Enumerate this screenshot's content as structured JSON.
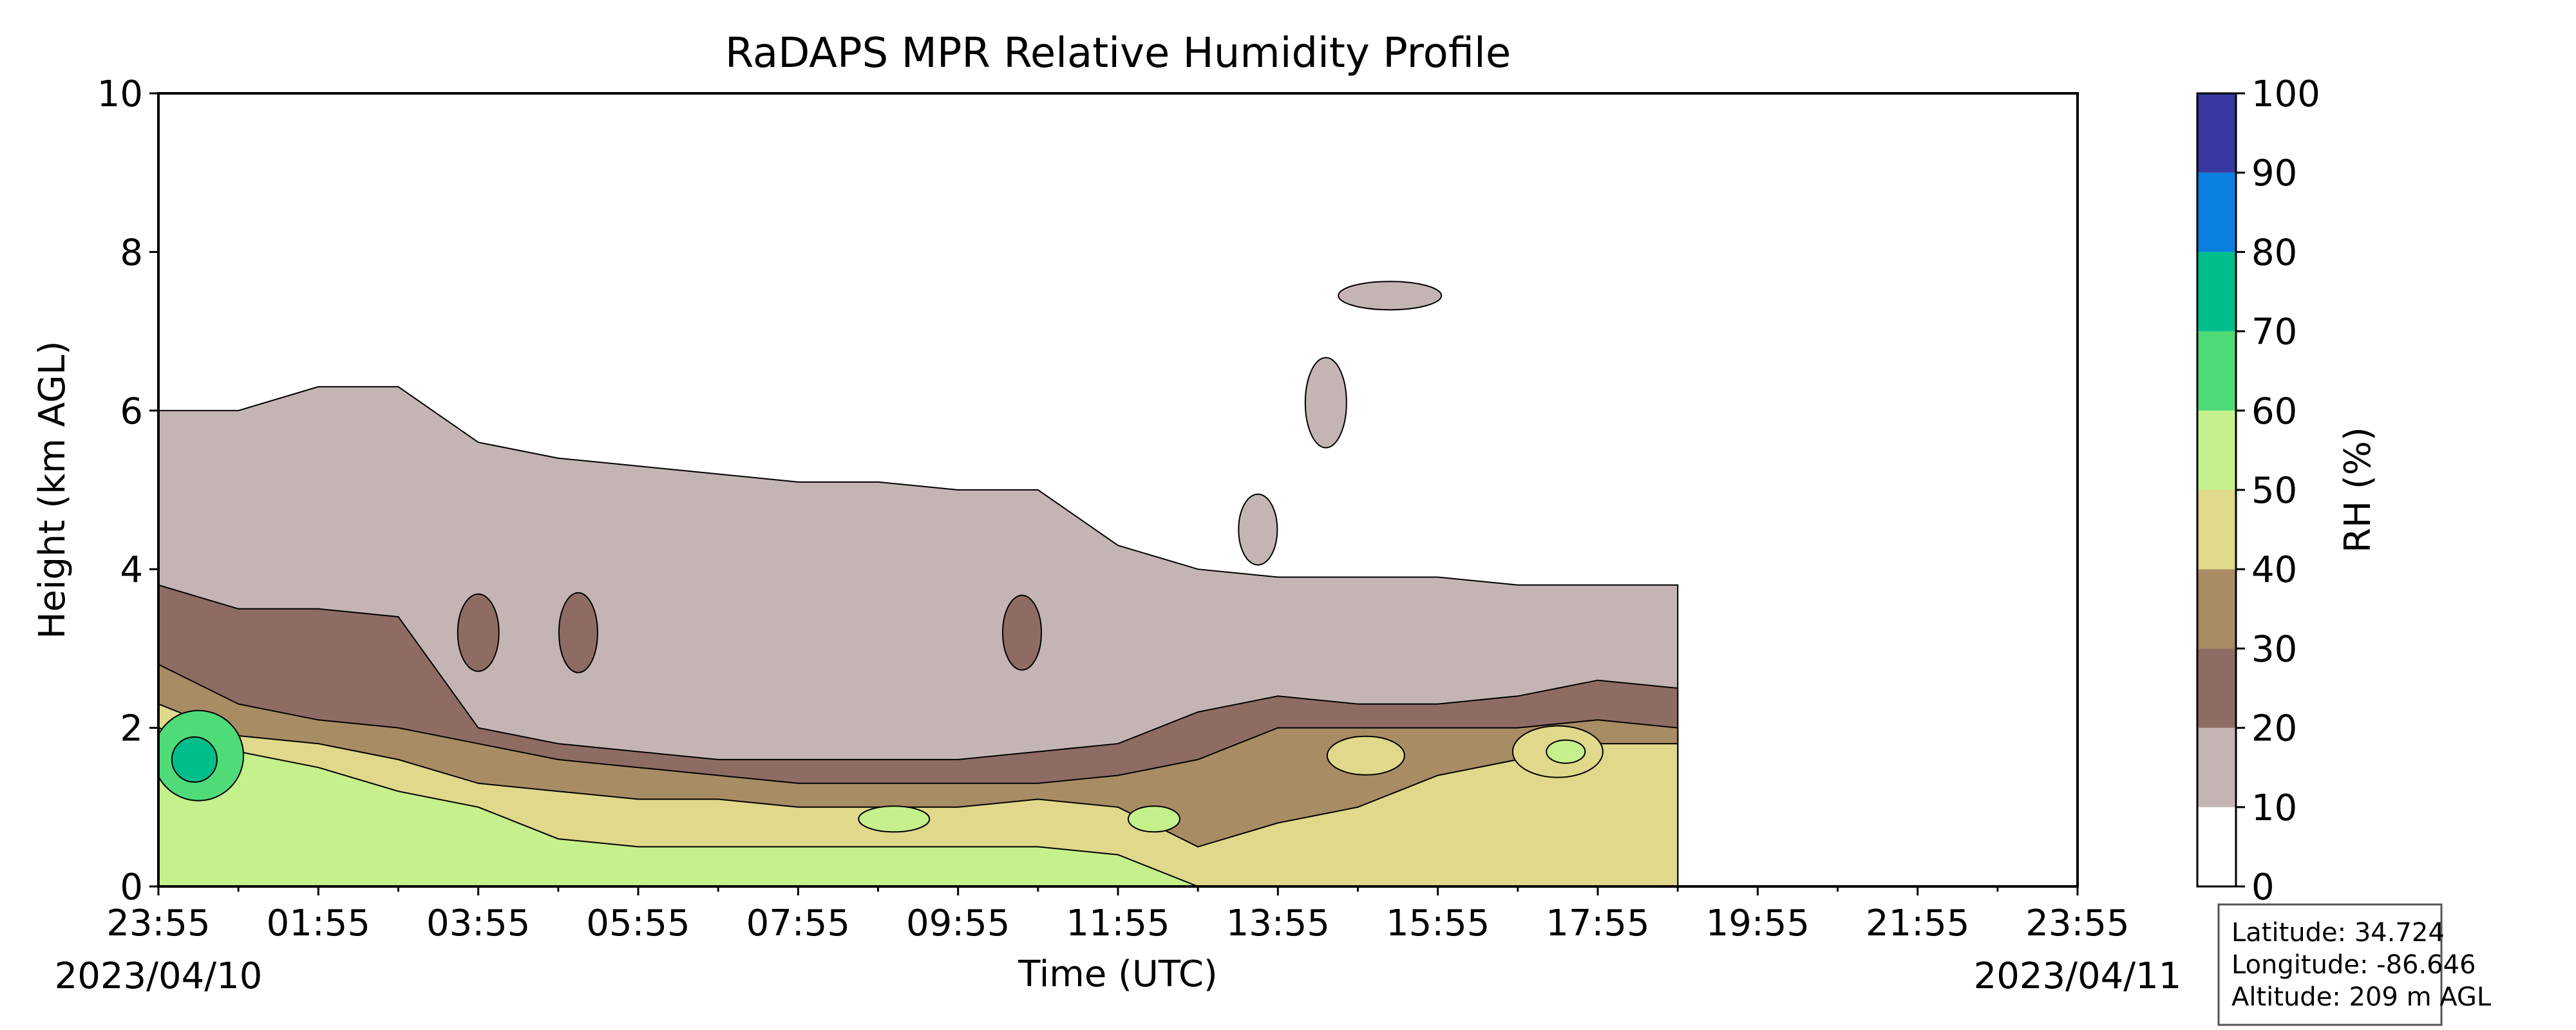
{
  "chart_data": {
    "type": "heatmap",
    "subtype": "filled-contour",
    "title": "RaDAPS MPR Relative Humidity Profile",
    "xlabel": "Time (UTC)",
    "ylabel": "Height (km AGL)",
    "ylim": [
      0,
      10
    ],
    "y_ticks": [
      "0",
      "2",
      "4",
      "6",
      "8",
      "10"
    ],
    "x_ticks": [
      "23:55",
      "01:55",
      "03:55",
      "05:55",
      "07:55",
      "09:55",
      "11:55",
      "13:55",
      "15:55",
      "17:55",
      "19:55",
      "21:55",
      "23:55"
    ],
    "start_date": "2023/04/10",
    "end_date": "2023/04/11",
    "data_end_time": "18:55",
    "colorbar": {
      "label": "RH (%)",
      "ticks": [
        "0",
        "10",
        "20",
        "30",
        "40",
        "50",
        "60",
        "70",
        "80",
        "90",
        "100"
      ],
      "levels": [
        0,
        10,
        20,
        30,
        40,
        50,
        60,
        70,
        80,
        90,
        100
      ],
      "colors": [
        "#ffffff",
        "#c4b5b4",
        "#8e6c64",
        "#a88c64",
        "#e0d88a",
        "#c6f08c",
        "#4fdb78",
        "#00be8c",
        "#0a80e0",
        "#3838a0"
      ]
    },
    "rh_bands_km": {
      "x_hours": [
        0,
        1,
        2,
        3,
        4,
        5,
        6,
        7,
        8,
        9,
        10,
        11,
        12,
        13,
        14,
        15,
        16,
        17,
        18,
        19
      ],
      "rh_lt_10_above": [
        6.0,
        6.0,
        6.3,
        6.3,
        5.6,
        5.4,
        5.3,
        5.2,
        5.1,
        5.1,
        5.0,
        5.0,
        4.3,
        4.0,
        3.9,
        3.9,
        3.9,
        3.8,
        3.8,
        3.8
      ],
      "rh_10_20_above": [
        3.8,
        3.5,
        3.5,
        3.4,
        2.0,
        1.8,
        1.7,
        1.6,
        1.6,
        1.6,
        1.6,
        1.7,
        1.8,
        2.2,
        2.4,
        2.3,
        2.3,
        2.4,
        2.6,
        2.5
      ],
      "rh_20_30_above": [
        2.8,
        2.3,
        2.1,
        2.0,
        1.8,
        1.6,
        1.5,
        1.4,
        1.3,
        1.3,
        1.3,
        1.3,
        1.4,
        1.6,
        2.0,
        2.0,
        2.0,
        2.0,
        2.1,
        2.0
      ],
      "rh_30_40_above": [
        2.3,
        1.9,
        1.8,
        1.6,
        1.3,
        1.2,
        1.1,
        1.1,
        1.0,
        1.0,
        1.0,
        1.1,
        1.0,
        0.5,
        0.8,
        1.0,
        1.4,
        1.6,
        1.8,
        1.8
      ],
      "rh_40_50_above": [
        2.0,
        1.7,
        1.5,
        1.2,
        1.0,
        0.6,
        0.5,
        0.5,
        0.5,
        0.5,
        0.5,
        0.5,
        0.4,
        0.0,
        0.0,
        0.0,
        0.0,
        0.0,
        0.0,
        0.0
      ],
      "rh_50_60_max_km": 1.9,
      "rh_60_70_max_km": 1.9,
      "rh_ge_70_surface_max_km": 0.1
    },
    "annotations": [
      "Latitude: 34.724",
      "Longitude: -86.646",
      "Altitude: 209 m AGL"
    ]
  },
  "info_box": {
    "latitude": "Latitude: 34.724",
    "longitude": "Longitude: -86.646",
    "altitude": "Altitude: 209 m AGL"
  }
}
